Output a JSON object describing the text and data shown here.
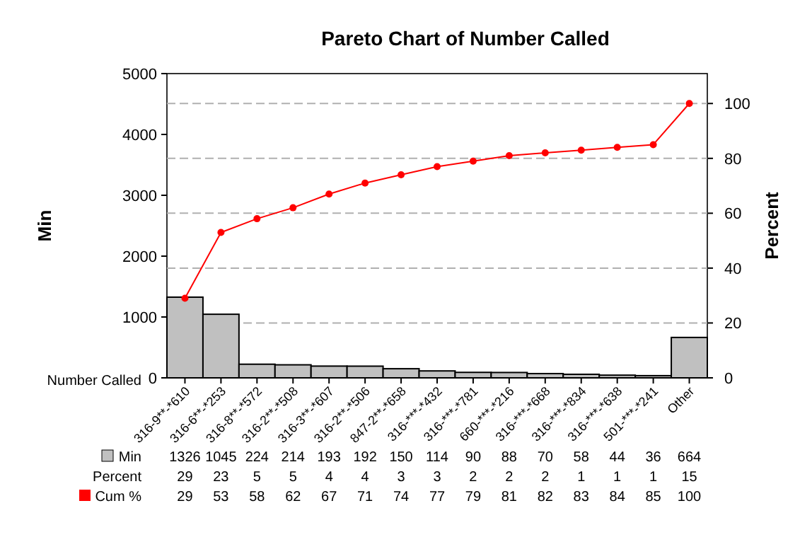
{
  "chart_data": {
    "type": "bar",
    "title": "Pareto Chart of Number Called",
    "xlabel": "Number Called",
    "ylabel": "Min",
    "y2label": "Percent",
    "categories": [
      "316-9**-*610",
      "316-6**-*253",
      "316-8**-*572",
      "316-2**-*508",
      "316-3**-*607",
      "316-2**-*506",
      "847-2**-*658",
      "316-***-*432",
      "316-***-*781",
      "660-***-*216",
      "316-***-*668",
      "316-***-*834",
      "316-***-*638",
      "501-***-*241",
      "Other"
    ],
    "series": [
      {
        "name": "Min",
        "color": "#c0c0c0",
        "values": [
          1326,
          1045,
          224,
          214,
          193,
          192,
          150,
          114,
          90,
          88,
          70,
          58,
          44,
          36,
          664
        ]
      },
      {
        "name": "Cum %",
        "type": "line",
        "axis": "y2",
        "color": "#ff0000",
        "marker": "circle",
        "values": [
          29,
          53,
          58,
          62,
          67,
          71,
          74,
          77,
          79,
          81,
          82,
          83,
          84,
          85,
          100
        ]
      }
    ],
    "ylim": [
      0,
      5000
    ],
    "yticks": [
      0,
      1000,
      2000,
      3000,
      4000,
      5000
    ],
    "y2lim": [
      0,
      110.9
    ],
    "y2ticks": [
      0,
      20,
      40,
      60,
      80,
      100
    ],
    "grid": "y2",
    "data_labels": true,
    "legend": "bottom left",
    "annotations": [
      "Percent",
      "29",
      "23",
      "5",
      "5",
      "4",
      "4",
      "3",
      "3",
      "2",
      "2",
      "2",
      "1",
      "1",
      "1",
      "15"
    ]
  }
}
